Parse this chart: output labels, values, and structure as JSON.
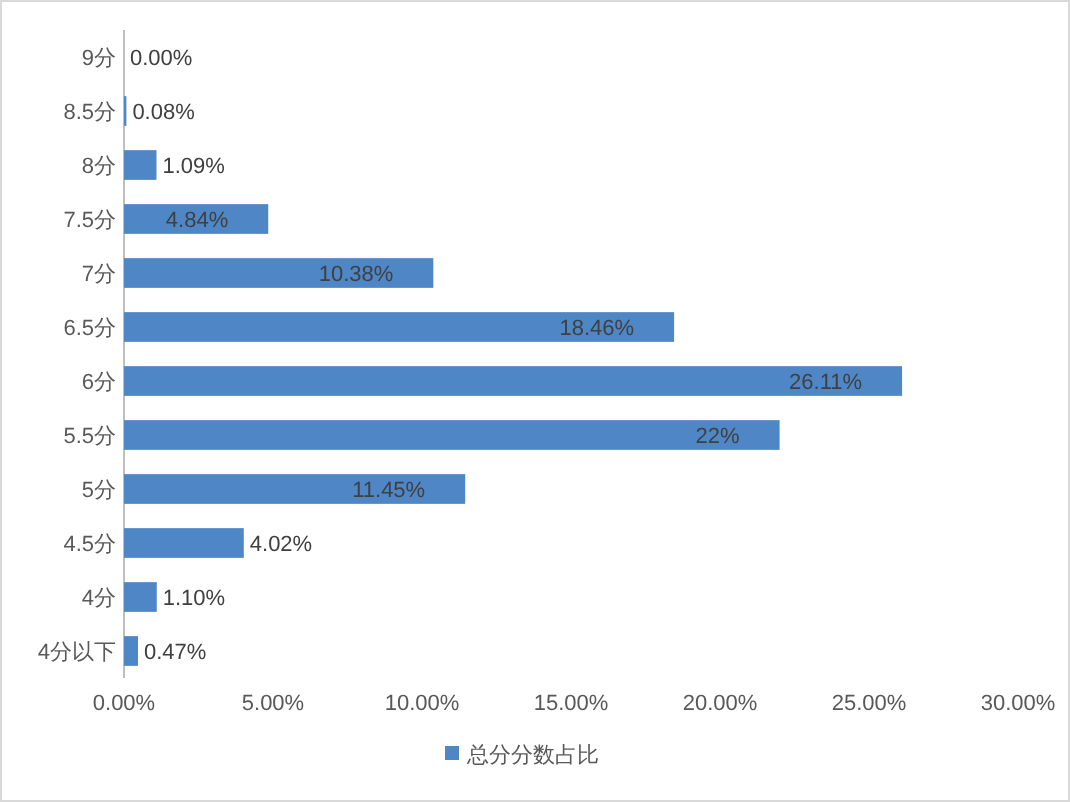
{
  "chart_data": {
    "type": "bar",
    "orientation": "horizontal",
    "categories": [
      "9分",
      "8.5分",
      "8分",
      "7.5分",
      "7分",
      "6.5分",
      "6分",
      "5.5分",
      "5分",
      "4.5分",
      "4分",
      "4分以下"
    ],
    "series": [
      {
        "name": "总分分数占比",
        "color": "#4f86c6",
        "values": [
          0,
          0.08,
          1.09,
          4.84,
          10.38,
          18.46,
          26.11,
          22,
          11.45,
          4.02,
          1.1,
          0.47
        ],
        "value_labels": [
          "0.00%",
          "0.08%",
          "1.09%",
          "4.84%",
          "10.38%",
          "18.46%",
          "26.11%",
          "22%",
          "11.45%",
          "4.02%",
          "1.10%",
          "0.47%"
        ]
      }
    ],
    "xlim": [
      0,
      30
    ],
    "xticks": [
      {
        "value": 0,
        "label": "0.00%"
      },
      {
        "value": 5,
        "label": "5.00%"
      },
      {
        "value": 10,
        "label": "10.00%"
      },
      {
        "value": 15,
        "label": "15.00%"
      },
      {
        "value": 20,
        "label": "20.00%"
      },
      {
        "value": 25,
        "label": "25.00%"
      },
      {
        "value": 30,
        "label": "30.00%"
      }
    ],
    "legend": "bottom"
  }
}
